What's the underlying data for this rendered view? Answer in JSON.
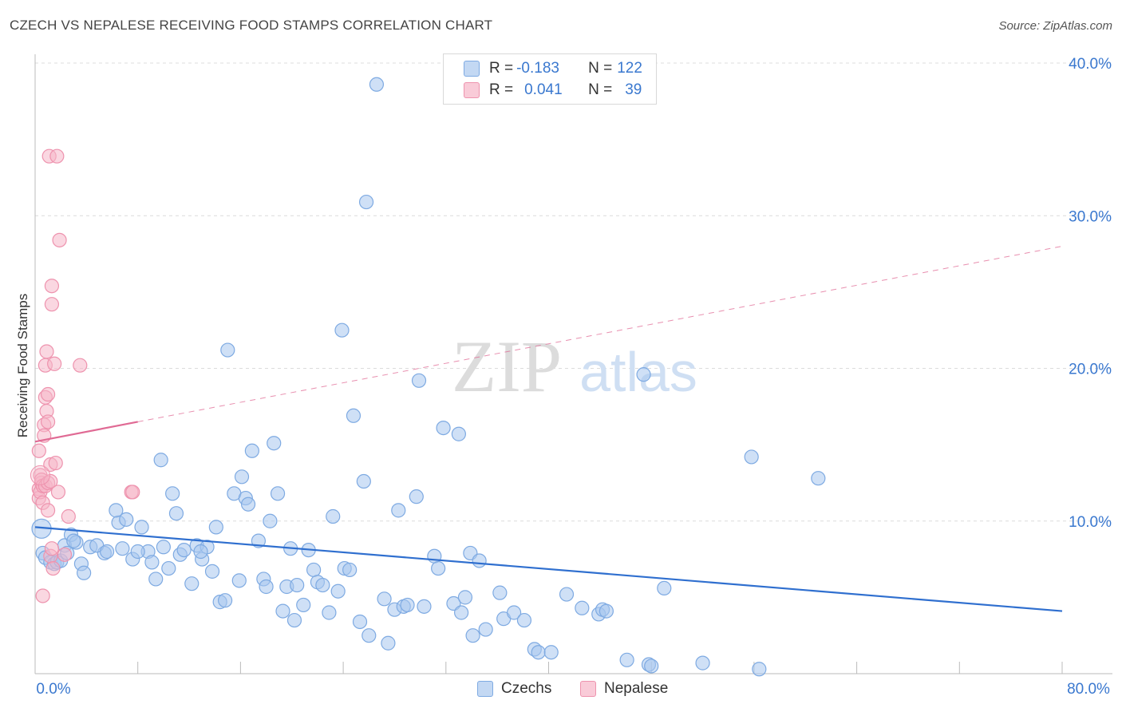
{
  "title": "CZECH VS NEPALESE RECEIVING FOOD STAMPS CORRELATION CHART",
  "source": "Source: ZipAtlas.com",
  "watermark": {
    "zip": "ZIP",
    "atlas": "atlas"
  },
  "legend": {
    "czech": {
      "r_label": "R = ",
      "r_value": "-0.183",
      "n_label": "N = ",
      "n_value": "122"
    },
    "nepalese": {
      "r_label": "R = ",
      "r_value": "0.041",
      "n_label": "N = ",
      "n_value": "39"
    }
  },
  "colors": {
    "czech_fill": "#a8c6ee",
    "czech_stroke": "#7eaae2",
    "czech_line": "#2f6fcf",
    "nepalese_fill": "#f6b6c8",
    "nepalese_stroke": "#ee93ae",
    "nepalese_line": "#e06a94",
    "axis_label": "#3a78cf",
    "grid": "#dcdcdc"
  },
  "chart_data": {
    "type": "scatter",
    "title": "CZECH VS NEPALESE RECEIVING FOOD STAMPS CORRELATION CHART",
    "ylabel": "Receiving Food Stamps",
    "xlabel": "",
    "xlim": [
      0,
      80
    ],
    "ylim": [
      0,
      40
    ],
    "x_tick_labels": [
      "0.0%",
      "80.0%"
    ],
    "y_ticks": [
      10,
      20,
      30,
      40
    ],
    "y_tick_labels": [
      "10.0%",
      "20.0%",
      "30.0%",
      "40.0%"
    ],
    "legend_entries": [
      "Czechs",
      "Nepalese"
    ],
    "series": [
      {
        "name": "Czechs",
        "r": -0.183,
        "n": 122,
        "trend": {
          "x": [
            0,
            80
          ],
          "y": [
            9.6,
            4.1
          ],
          "style": "solid"
        },
        "points": [
          [
            0.5,
            9.5
          ],
          [
            0.6,
            7.9
          ],
          [
            0.8,
            7.6
          ],
          [
            1.2,
            7.3
          ],
          [
            1.5,
            7.2
          ],
          [
            1.7,
            7.3
          ],
          [
            2.0,
            7.4
          ],
          [
            2.3,
            8.4
          ],
          [
            2.8,
            9.1
          ],
          [
            3.2,
            8.6
          ],
          [
            3.6,
            7.2
          ],
          [
            3.8,
            6.6
          ],
          [
            4.3,
            8.3
          ],
          [
            5.4,
            7.9
          ],
          [
            4.8,
            8.4
          ],
          [
            6.5,
            9.9
          ],
          [
            6.8,
            8.2
          ],
          [
            7.6,
            7.5
          ],
          [
            7.1,
            10.1
          ],
          [
            6.3,
            10.7
          ],
          [
            8.3,
            9.6
          ],
          [
            8.8,
            8.0
          ],
          [
            9.1,
            7.3
          ],
          [
            9.4,
            6.2
          ],
          [
            9.8,
            14.0
          ],
          [
            10.4,
            6.9
          ],
          [
            10.7,
            11.8
          ],
          [
            11.0,
            10.5
          ],
          [
            11.3,
            7.8
          ],
          [
            11.6,
            8.1
          ],
          [
            12.2,
            5.9
          ],
          [
            12.6,
            8.4
          ],
          [
            13.0,
            7.5
          ],
          [
            13.4,
            8.3
          ],
          [
            13.8,
            6.7
          ],
          [
            14.1,
            9.6
          ],
          [
            14.4,
            4.7
          ],
          [
            14.8,
            4.8
          ],
          [
            15.0,
            21.2
          ],
          [
            15.5,
            11.8
          ],
          [
            15.9,
            6.1
          ],
          [
            16.1,
            12.9
          ],
          [
            16.4,
            11.5
          ],
          [
            16.6,
            11.1
          ],
          [
            16.9,
            14.6
          ],
          [
            17.4,
            8.7
          ],
          [
            17.8,
            6.2
          ],
          [
            18.0,
            5.7
          ],
          [
            18.3,
            10.0
          ],
          [
            18.6,
            15.1
          ],
          [
            18.9,
            11.8
          ],
          [
            19.3,
            4.1
          ],
          [
            19.6,
            5.7
          ],
          [
            19.9,
            8.2
          ],
          [
            20.2,
            3.5
          ],
          [
            20.9,
            4.5
          ],
          [
            21.3,
            8.1
          ],
          [
            21.7,
            6.8
          ],
          [
            22.0,
            6.0
          ],
          [
            22.4,
            5.8
          ],
          [
            22.9,
            4.0
          ],
          [
            23.2,
            10.3
          ],
          [
            23.6,
            5.4
          ],
          [
            23.9,
            22.5
          ],
          [
            24.1,
            6.9
          ],
          [
            24.5,
            6.8
          ],
          [
            24.8,
            16.9
          ],
          [
            25.3,
            3.4
          ],
          [
            25.6,
            12.6
          ],
          [
            25.8,
            30.9
          ],
          [
            26.0,
            2.5
          ],
          [
            26.6,
            38.6
          ],
          [
            27.2,
            4.9
          ],
          [
            27.5,
            2.0
          ],
          [
            28.0,
            4.2
          ],
          [
            28.3,
            10.7
          ],
          [
            28.7,
            4.4
          ],
          [
            29.0,
            4.5
          ],
          [
            29.7,
            11.6
          ],
          [
            29.9,
            19.2
          ],
          [
            30.3,
            4.4
          ],
          [
            31.1,
            7.7
          ],
          [
            31.4,
            6.9
          ],
          [
            31.8,
            16.1
          ],
          [
            32.6,
            4.6
          ],
          [
            33.0,
            15.7
          ],
          [
            33.2,
            4.0
          ],
          [
            33.5,
            5.0
          ],
          [
            33.9,
            7.9
          ],
          [
            34.1,
            2.5
          ],
          [
            34.6,
            7.4
          ],
          [
            35.1,
            2.9
          ],
          [
            36.2,
            5.3
          ],
          [
            36.5,
            3.6
          ],
          [
            37.3,
            4.0
          ],
          [
            38.1,
            3.5
          ],
          [
            38.9,
            1.6
          ],
          [
            39.2,
            1.4
          ],
          [
            40.2,
            1.4
          ],
          [
            41.4,
            5.2
          ],
          [
            42.6,
            4.3
          ],
          [
            43.9,
            3.9
          ],
          [
            44.2,
            4.2
          ],
          [
            44.5,
            4.1
          ],
          [
            46.1,
            0.9
          ],
          [
            47.4,
            19.6
          ],
          [
            47.8,
            0.6
          ],
          [
            48.0,
            0.5
          ],
          [
            49.0,
            5.6
          ],
          [
            52.0,
            0.7
          ],
          [
            55.8,
            14.2
          ],
          [
            56.4,
            0.3
          ],
          [
            61.0,
            12.8
          ],
          [
            5.6,
            8.0
          ],
          [
            12.9,
            8.0
          ],
          [
            2.5,
            7.9
          ],
          [
            3.0,
            8.7
          ],
          [
            8.0,
            8.0
          ],
          [
            10.0,
            8.3
          ],
          [
            20.4,
            5.8
          ]
        ]
      },
      {
        "name": "Nepalese",
        "r": 0.041,
        "n": 39,
        "trend_solid": {
          "x": [
            0,
            8
          ],
          "y": [
            15.2,
            16.5
          ]
        },
        "trend_dashed": {
          "x": [
            8,
            80
          ],
          "y": [
            16.5,
            28.0
          ]
        },
        "points": [
          [
            0.3,
            14.6
          ],
          [
            0.3,
            12.1
          ],
          [
            0.3,
            11.5
          ],
          [
            0.4,
            13.0
          ],
          [
            0.4,
            11.9
          ],
          [
            0.5,
            12.5
          ],
          [
            0.5,
            12.7
          ],
          [
            0.6,
            12.3
          ],
          [
            0.6,
            11.2
          ],
          [
            0.7,
            16.3
          ],
          [
            0.7,
            15.6
          ],
          [
            0.8,
            18.1
          ],
          [
            0.8,
            20.2
          ],
          [
            0.8,
            12.3
          ],
          [
            0.9,
            17.2
          ],
          [
            0.9,
            21.1
          ],
          [
            1.0,
            16.5
          ],
          [
            1.0,
            18.3
          ],
          [
            1.0,
            12.5
          ],
          [
            1.0,
            10.7
          ],
          [
            1.1,
            33.9
          ],
          [
            1.2,
            13.7
          ],
          [
            1.2,
            12.6
          ],
          [
            1.2,
            7.7
          ],
          [
            1.3,
            24.2
          ],
          [
            1.3,
            25.4
          ],
          [
            1.3,
            8.2
          ],
          [
            1.4,
            6.9
          ],
          [
            1.5,
            20.3
          ],
          [
            1.6,
            13.8
          ],
          [
            1.7,
            33.9
          ],
          [
            1.8,
            11.9
          ],
          [
            1.9,
            28.4
          ],
          [
            2.3,
            7.8
          ],
          [
            2.6,
            10.3
          ],
          [
            3.5,
            20.2
          ],
          [
            7.5,
            11.9
          ],
          [
            7.6,
            11.9
          ],
          [
            0.6,
            5.1
          ]
        ]
      }
    ]
  },
  "axis": {
    "ylabel": "Receiving Food Stamps",
    "x_left": "0.0%",
    "x_right": "80.0%"
  },
  "bottom_legend": {
    "czechs": "Czechs",
    "nepalese": "Nepalese"
  }
}
